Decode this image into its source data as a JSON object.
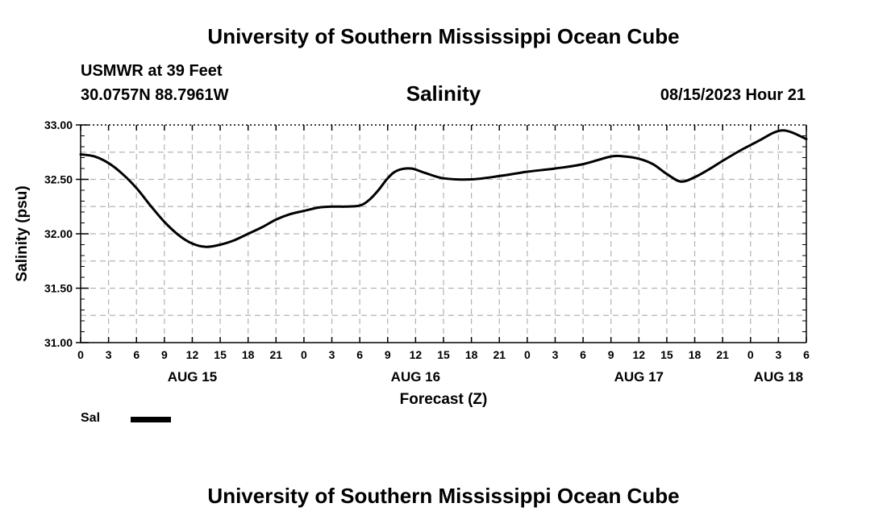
{
  "header": {
    "title_top": "University of Southern Mississippi Ocean Cube",
    "station": "USMWR at 39 Feet",
    "coords": "30.0757N  88.7961W",
    "chart_title": "Salinity",
    "run_time": "08/15/2023 Hour 21",
    "title_bottom": "University of Southern Mississippi Ocean Cube"
  },
  "legend": {
    "label": "Sal",
    "color": "#000000"
  },
  "chart_data": {
    "type": "line",
    "title": "Salinity",
    "xlabel": "Forecast (Z)",
    "ylabel": "Salinity (psu)",
    "ylim": [
      31.0,
      33.0
    ],
    "xlim": [
      0,
      78
    ],
    "grid": true,
    "y_ticks": [
      "31.00",
      "31.50",
      "32.00",
      "32.50",
      "33.00"
    ],
    "x_tick_labels": [
      "0",
      "3",
      "6",
      "9",
      "12",
      "15",
      "18",
      "21",
      "0",
      "3",
      "6",
      "9",
      "12",
      "15",
      "18",
      "21",
      "0",
      "3",
      "6",
      "9",
      "12",
      "15",
      "18",
      "21",
      "0",
      "3",
      "6"
    ],
    "date_labels": [
      {
        "label": "AUG 15",
        "hour": 12
      },
      {
        "label": "AUG 16",
        "hour": 36
      },
      {
        "label": "AUG 17",
        "hour": 60
      },
      {
        "label": "AUG 18",
        "hour": 75
      }
    ],
    "series": [
      {
        "name": "Sal",
        "x": [
          0,
          1.5,
          3,
          4.5,
          6,
          7.5,
          9,
          10.5,
          12,
          13.5,
          15,
          16.5,
          18,
          19.5,
          21,
          22.5,
          24,
          25.5,
          27,
          28.5,
          30,
          31,
          32,
          33,
          34,
          35.5,
          37,
          39,
          42,
          45,
          48,
          51,
          54,
          57,
          58.5,
          60,
          61.5,
          63,
          64.5,
          66,
          67.5,
          69,
          71,
          73,
          74.5,
          75.5,
          76.5,
          78
        ],
        "values": [
          32.73,
          32.71,
          32.65,
          32.55,
          32.42,
          32.26,
          32.11,
          31.99,
          31.91,
          31.88,
          31.9,
          31.94,
          32.0,
          32.06,
          32.13,
          32.18,
          32.21,
          32.24,
          32.25,
          32.25,
          32.26,
          32.31,
          32.4,
          32.51,
          32.58,
          32.6,
          32.56,
          32.51,
          32.5,
          32.53,
          32.57,
          32.6,
          32.64,
          32.71,
          32.71,
          32.69,
          32.64,
          32.55,
          32.48,
          32.52,
          32.59,
          32.67,
          32.77,
          32.86,
          32.93,
          32.95,
          32.93,
          32.87
        ]
      }
    ]
  }
}
